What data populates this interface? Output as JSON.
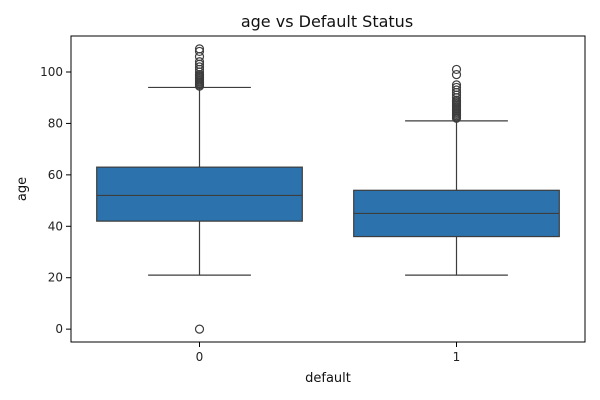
{
  "chart_data": {
    "type": "box",
    "title": "age vs Default Status",
    "xlabel": "default",
    "ylabel": "age",
    "categories": [
      "0",
      "1"
    ],
    "ylim": [
      -5,
      114
    ],
    "yticks": [
      0,
      20,
      40,
      60,
      80,
      100
    ],
    "grid": false,
    "box_color": "#2c72ad",
    "line_color": "#3d3d3d",
    "boxes": [
      {
        "category": "0",
        "whisker_low": 21,
        "q1": 42,
        "median": 52,
        "q3": 63,
        "whisker_high": 94,
        "outliers": [
          0,
          94.5,
          95,
          95.5,
          96,
          96.5,
          97,
          97.5,
          98,
          98.5,
          99,
          100,
          101,
          102,
          103,
          104,
          106,
          108,
          109
        ]
      },
      {
        "category": "1",
        "whisker_low": 21,
        "q1": 36,
        "median": 45,
        "q3": 54,
        "whisker_high": 81,
        "outliers": [
          82,
          82.5,
          83,
          83.5,
          84,
          84.5,
          85,
          85.5,
          86,
          86.5,
          87,
          87.5,
          88,
          88.5,
          89,
          90,
          91,
          92,
          93,
          94,
          95,
          99,
          101
        ]
      }
    ]
  }
}
